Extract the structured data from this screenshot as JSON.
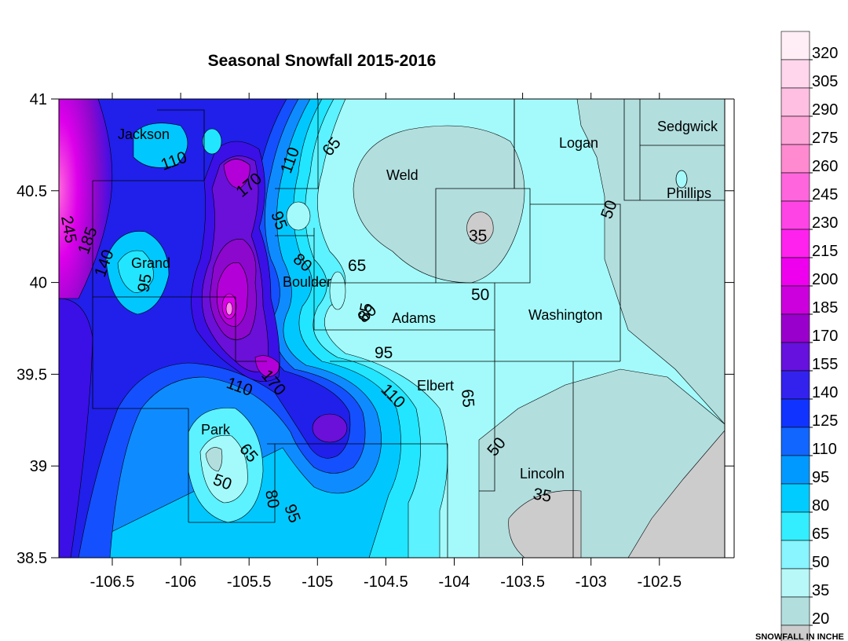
{
  "title": "Seasonal Snowfall 2015-2016",
  "x_ticks": [
    "-106.5",
    "-106",
    "-105.5",
    "-105",
    "-104.5",
    "-104",
    "-103.5",
    "-103",
    "-102.5"
  ],
  "y_ticks": [
    "41",
    "40.5",
    "40",
    "39.5",
    "39",
    "38.5"
  ],
  "counties": [
    "Jackson",
    "Grand",
    "Boulder",
    "Park",
    "Weld",
    "Logan",
    "Sedgwick",
    "Phillips",
    "Adams",
    "Washington",
    "Elbert",
    "Lincoln"
  ],
  "contour_labels": [
    "245",
    "185",
    "140",
    "95",
    "110",
    "170",
    "110",
    "95",
    "80",
    "65",
    "65",
    "35",
    "50",
    "50",
    "80",
    "65",
    "95",
    "110",
    "170",
    "110",
    "65",
    "50",
    "35",
    "65",
    "50",
    "80",
    "95"
  ],
  "legend": {
    "levels": [
      "320",
      "305",
      "290",
      "275",
      "260",
      "245",
      "230",
      "215",
      "200",
      "185",
      "170",
      "155",
      "140",
      "125",
      "110",
      "95",
      "80",
      "65",
      "50",
      "35",
      "20"
    ],
    "colors": [
      "#ffeef6",
      "#ffd6ec",
      "#ffbfe2",
      "#ffa6d8",
      "#ff8ad0",
      "#ff66dd",
      "#ff44e6",
      "#ff22ee",
      "#ee00ee",
      "#cc00dd",
      "#9900cc",
      "#6611dd",
      "#3322ee",
      "#1133ff",
      "#1166ff",
      "#0099ff",
      "#00ccff",
      "#33eeff",
      "#88f5ff",
      "#b8f8f8",
      "#b2dede",
      "#cccccc"
    ],
    "footer": "SNOWFALL IN INCHE"
  },
  "colors": {
    "c20": "#cccccc",
    "c35": "#b2dede",
    "c50": "#a4fafa",
    "c65": "#5cf2ff",
    "c80": "#22e6ff",
    "c95": "#00c8ff",
    "c110": "#0e8cff",
    "c125": "#1550ff",
    "c140": "#2020ea",
    "c155": "#3a10e6",
    "c170": "#6a10d8",
    "c185": "#8c08cc",
    "c200": "#b400d8",
    "c215": "#dd00ea",
    "c245": "#f066e8"
  }
}
